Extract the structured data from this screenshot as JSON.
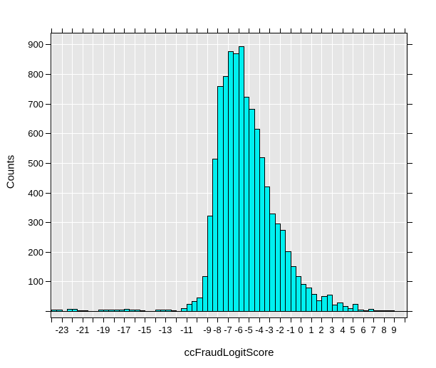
{
  "figure": {
    "background": "#ffffff",
    "plot": {
      "bg": "#e6e6e6",
      "border": "#000000"
    }
  },
  "chart_data": {
    "type": "bar",
    "subtype": "histogram",
    "title": "",
    "xlabel": "ccFraudLogitScore",
    "ylabel": "Counts",
    "grid": "on",
    "grid_color": "#ffffff",
    "bar_fill": "#00f0f0",
    "bar_border": "#000000",
    "bin_width": 0.5,
    "xlim": [
      -24,
      10.2
    ],
    "ylim": [
      0,
      937
    ],
    "x_tick_min": -24,
    "x_tick_max": 10,
    "x_tick_step": 1,
    "x_labeled_ticks": [
      -23,
      -21,
      -19,
      -17,
      -15,
      -13,
      -11,
      -9,
      -8,
      -7,
      -6,
      -5,
      -4,
      -3,
      -2,
      -1,
      0,
      1,
      2,
      3,
      4,
      5,
      6,
      7,
      8,
      9
    ],
    "y_ticks": [
      0,
      100,
      200,
      300,
      400,
      500,
      600,
      700,
      800,
      900
    ],
    "y_labeled_ticks": [
      100,
      200,
      300,
      400,
      500,
      600,
      700,
      800,
      900
    ],
    "grid_y": [
      100,
      200,
      300,
      400,
      500,
      600,
      700,
      800,
      900
    ],
    "bins": [
      [
        -24,
        4
      ],
      [
        -23.5,
        4
      ],
      [
        -22.5,
        7
      ],
      [
        -22,
        7
      ],
      [
        -21.5,
        3
      ],
      [
        -21,
        3
      ],
      [
        -19.5,
        4
      ],
      [
        -19,
        4
      ],
      [
        -18.5,
        4
      ],
      [
        -18,
        4
      ],
      [
        -17.5,
        4
      ],
      [
        -17,
        7
      ],
      [
        -16.5,
        6
      ],
      [
        -16,
        4
      ],
      [
        -15.5,
        3
      ],
      [
        -14,
        4
      ],
      [
        -13.5,
        4
      ],
      [
        -13,
        4
      ],
      [
        -12.5,
        3
      ],
      [
        -11.5,
        10
      ],
      [
        -11,
        24
      ],
      [
        -10.5,
        34
      ],
      [
        -10,
        45
      ],
      [
        -9.5,
        117
      ],
      [
        -9,
        321
      ],
      [
        -8.5,
        513
      ],
      [
        -8,
        760
      ],
      [
        -7.5,
        792
      ],
      [
        -7,
        877
      ],
      [
        -6.5,
        869
      ],
      [
        -6,
        893
      ],
      [
        -5.5,
        724
      ],
      [
        -5,
        682
      ],
      [
        -4.5,
        614
      ],
      [
        -4,
        518
      ],
      [
        -3.5,
        420
      ],
      [
        -3,
        329
      ],
      [
        -2.5,
        295
      ],
      [
        -2,
        275
      ],
      [
        -1.5,
        201
      ],
      [
        -1,
        151
      ],
      [
        -0.5,
        117
      ],
      [
        0,
        91
      ],
      [
        0.5,
        79
      ],
      [
        1,
        57
      ],
      [
        1.5,
        37
      ],
      [
        2,
        50
      ],
      [
        2.5,
        55
      ],
      [
        3,
        21
      ],
      [
        3.5,
        30
      ],
      [
        4,
        17
      ],
      [
        4.5,
        10
      ],
      [
        5,
        23
      ],
      [
        5.5,
        5
      ],
      [
        6,
        3
      ],
      [
        6.5,
        8
      ],
      [
        7,
        2
      ],
      [
        7.5,
        3
      ],
      [
        8,
        1
      ],
      [
        8.5,
        2
      ]
    ]
  }
}
